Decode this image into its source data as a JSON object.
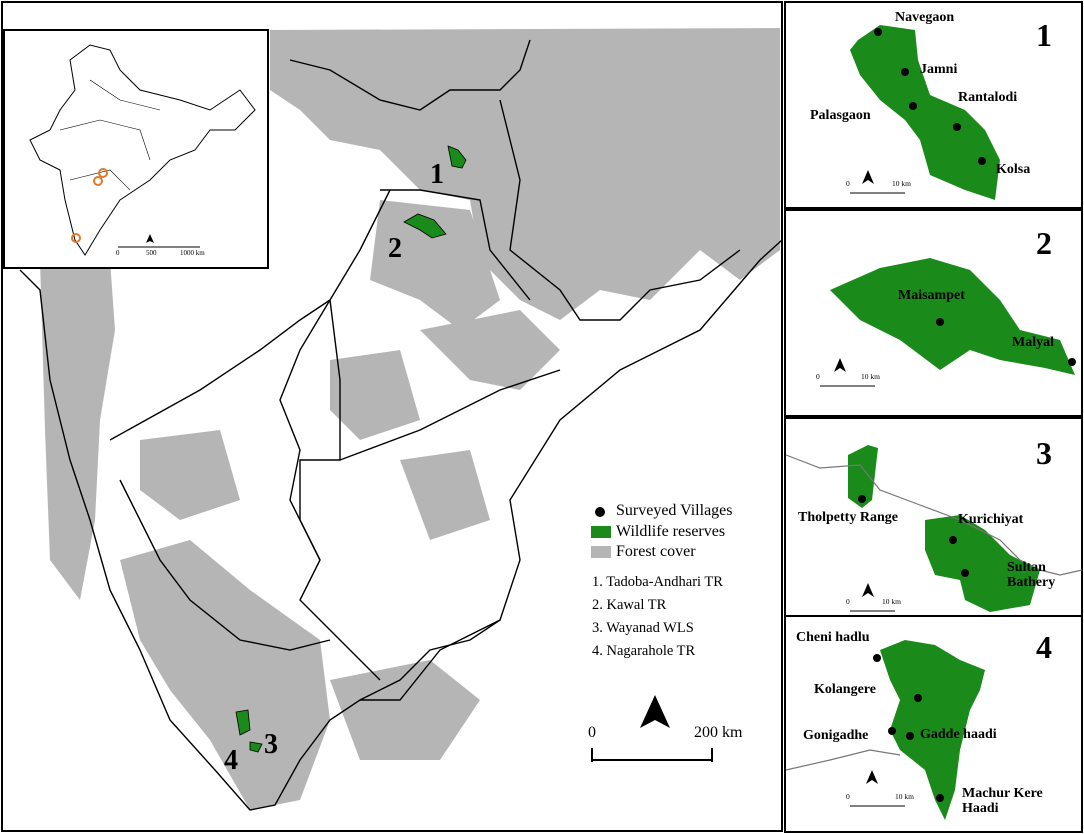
{
  "main_map": {
    "reserve_labels": [
      "1",
      "2",
      "3",
      "4"
    ],
    "scale_bar": [
      "0",
      "200 km"
    ]
  },
  "legend": {
    "items": [
      "Surveyed Villages",
      "Wildlife reserves",
      "Forest cover"
    ],
    "reserves": [
      "1. Tadoba-Andhari TR",
      "2. Kawal TR",
      "3. Wayanad WLS",
      "4. Nagarahole TR"
    ]
  },
  "inset": {
    "scale_bar": [
      "0",
      "500",
      "1000 km"
    ]
  },
  "panels": [
    {
      "number": "1",
      "villages": [
        "Navegaon",
        "Jamni",
        "Palasgaon",
        "Rantalodi",
        "Kolsa"
      ],
      "scale_bar": [
        "0",
        "10 km"
      ]
    },
    {
      "number": "2",
      "villages": [
        "Maisampet",
        "Malyal"
      ],
      "scale_bar": [
        "0",
        "10 km"
      ]
    },
    {
      "number": "3",
      "villages": [
        "Tholpetty Range",
        "Kurichiyat",
        "Sultan Bathery"
      ],
      "scale_bar": [
        "0",
        "10 km"
      ]
    },
    {
      "number": "4",
      "villages": [
        "Cheni hadlu",
        "Kolangere",
        "Gonigadhe",
        "Gadde haadi",
        "Machur Kere Haadi"
      ],
      "scale_bar": [
        "0",
        "10 km"
      ]
    }
  ]
}
